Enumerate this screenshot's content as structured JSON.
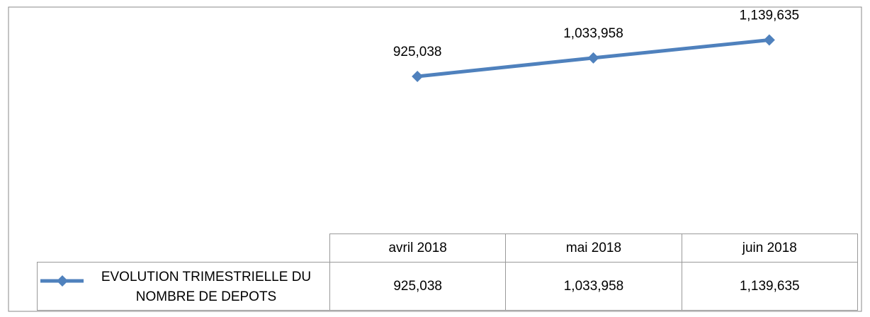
{
  "chart_data": {
    "type": "line",
    "categories": [
      "avril 2018",
      "mai 2018",
      "juin 2018"
    ],
    "series": [
      {
        "name": "EVOLUTION TRIMESTRIELLE DU NOMBRE DE DEPOTS",
        "color": "#4f81bd",
        "values": [
          925038,
          1033958,
          1139635
        ],
        "value_labels": [
          "925,038",
          "1,033,958",
          "1,139,635"
        ]
      }
    ],
    "ylim": [
      0,
      1200000
    ]
  }
}
